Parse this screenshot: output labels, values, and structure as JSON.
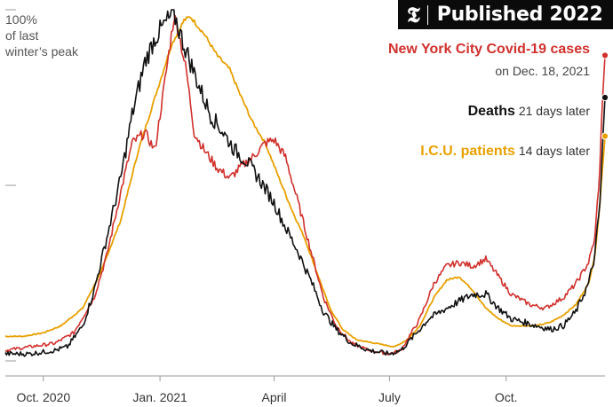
{
  "badge": {
    "logo_glyph": "𝕿",
    "text": "Published 2022"
  },
  "y_axis_label": "100%\nof last\nwinter’s peak",
  "annotations": {
    "cases_title": "New York City Covid-19 cases",
    "cases_date": "on Dec. 18, 2021",
    "deaths_title": "Deaths",
    "deaths_lag": "21 days later",
    "icu_title": "I.C.U. patients",
    "icu_lag": "14 days later"
  },
  "colors": {
    "cases": "#d0312d",
    "deaths": "#111111",
    "icu": "#e8a000",
    "axis": "#999999",
    "text": "#333333"
  },
  "chart_data": {
    "type": "line",
    "x_tick_labels": [
      "Oct. 2020",
      "Jan. 2021",
      "April",
      "July",
      "Oct."
    ],
    "x_tick_dates": [
      "2020-10-01",
      "2021-01-01",
      "2021-04-01",
      "2021-07-01",
      "2021-10-01"
    ],
    "xlim": [
      "2020-09-01",
      "2021-12-18"
    ],
    "ylim": [
      0,
      100
    ],
    "y_ticks": [
      0,
      50,
      100
    ],
    "y_unit": "% of last winter's peak",
    "series": [
      {
        "name": "New York City Covid-19 cases",
        "color": "#d0312d",
        "points": [
          [
            "2020-09-01",
            3
          ],
          [
            "2020-09-20",
            4
          ],
          [
            "2020-10-10",
            5
          ],
          [
            "2020-10-25",
            8
          ],
          [
            "2020-11-10",
            18
          ],
          [
            "2020-11-20",
            30
          ],
          [
            "2020-12-01",
            48
          ],
          [
            "2020-12-10",
            62
          ],
          [
            "2020-12-20",
            65
          ],
          [
            "2020-12-28",
            60
          ],
          [
            "2021-01-05",
            80
          ],
          [
            "2021-01-12",
            98
          ],
          [
            "2021-01-15",
            95
          ],
          [
            "2021-01-22",
            82
          ],
          [
            "2021-01-28",
            65
          ],
          [
            "2021-02-05",
            60
          ],
          [
            "2021-02-15",
            55
          ],
          [
            "2021-02-25",
            52
          ],
          [
            "2021-03-05",
            55
          ],
          [
            "2021-03-15",
            58
          ],
          [
            "2021-03-25",
            62
          ],
          [
            "2021-04-01",
            63
          ],
          [
            "2021-04-10",
            58
          ],
          [
            "2021-04-20",
            45
          ],
          [
            "2021-05-01",
            30
          ],
          [
            "2021-05-10",
            18
          ],
          [
            "2021-05-20",
            10
          ],
          [
            "2021-06-01",
            5
          ],
          [
            "2021-06-15",
            3
          ],
          [
            "2021-07-01",
            2
          ],
          [
            "2021-07-10",
            3
          ],
          [
            "2021-07-25",
            12
          ],
          [
            "2021-08-05",
            22
          ],
          [
            "2021-08-15",
            27
          ],
          [
            "2021-08-25",
            28
          ],
          [
            "2021-09-05",
            27
          ],
          [
            "2021-09-15",
            29
          ],
          [
            "2021-09-25",
            24
          ],
          [
            "2021-10-05",
            19
          ],
          [
            "2021-10-20",
            16
          ],
          [
            "2021-11-01",
            15
          ],
          [
            "2021-11-15",
            18
          ],
          [
            "2021-11-25",
            22
          ],
          [
            "2021-12-05",
            28
          ],
          [
            "2021-12-10",
            35
          ],
          [
            "2021-12-14",
            55
          ],
          [
            "2021-12-16",
            75
          ],
          [
            "2021-12-18",
            87
          ]
        ]
      },
      {
        "name": "Deaths",
        "color": "#111111",
        "points": [
          [
            "2020-09-01",
            2
          ],
          [
            "2020-09-20",
            2
          ],
          [
            "2020-10-10",
            3
          ],
          [
            "2020-10-20",
            4
          ],
          [
            "2020-11-01",
            10
          ],
          [
            "2020-11-10",
            20
          ],
          [
            "2020-11-20",
            35
          ],
          [
            "2020-12-01",
            52
          ],
          [
            "2020-12-10",
            70
          ],
          [
            "2020-12-20",
            85
          ],
          [
            "2020-12-28",
            92
          ],
          [
            "2021-01-05",
            96
          ],
          [
            "2021-01-12",
            99
          ],
          [
            "2021-01-18",
            92
          ],
          [
            "2021-01-25",
            85
          ],
          [
            "2021-02-01",
            78
          ],
          [
            "2021-02-10",
            70
          ],
          [
            "2021-02-20",
            65
          ],
          [
            "2021-03-01",
            60
          ],
          [
            "2021-03-10",
            57
          ],
          [
            "2021-03-20",
            52
          ],
          [
            "2021-04-01",
            45
          ],
          [
            "2021-04-10",
            38
          ],
          [
            "2021-04-20",
            31
          ],
          [
            "2021-05-01",
            22
          ],
          [
            "2021-05-10",
            14
          ],
          [
            "2021-05-20",
            9
          ],
          [
            "2021-06-01",
            5
          ],
          [
            "2021-06-15",
            3
          ],
          [
            "2021-07-01",
            2
          ],
          [
            "2021-07-10",
            3
          ],
          [
            "2021-07-20",
            7
          ],
          [
            "2021-08-01",
            12
          ],
          [
            "2021-08-15",
            15
          ],
          [
            "2021-08-25",
            17
          ],
          [
            "2021-09-05",
            19
          ],
          [
            "2021-09-15",
            19
          ],
          [
            "2021-09-25",
            15
          ],
          [
            "2021-10-05",
            12
          ],
          [
            "2021-10-15",
            11
          ],
          [
            "2021-10-25",
            10
          ],
          [
            "2021-11-05",
            9
          ],
          [
            "2021-11-15",
            10
          ],
          [
            "2021-11-25",
            14
          ],
          [
            "2021-12-05",
            22
          ],
          [
            "2021-12-10",
            30
          ],
          [
            "2021-12-14",
            45
          ],
          [
            "2021-12-16",
            60
          ],
          [
            "2021-12-18",
            75
          ]
        ]
      },
      {
        "name": "I.C.U. patients",
        "color": "#e8a000",
        "points": [
          [
            "2020-09-01",
            7
          ],
          [
            "2020-09-15",
            7
          ],
          [
            "2020-10-01",
            8
          ],
          [
            "2020-10-15",
            10
          ],
          [
            "2020-11-01",
            15
          ],
          [
            "2020-11-15",
            25
          ],
          [
            "2020-12-01",
            40
          ],
          [
            "2020-12-15",
            60
          ],
          [
            "2020-12-28",
            75
          ],
          [
            "2021-01-10",
            90
          ],
          [
            "2021-01-20",
            97
          ],
          [
            "2021-01-25",
            98
          ],
          [
            "2021-02-05",
            93
          ],
          [
            "2021-02-15",
            87
          ],
          [
            "2021-02-25",
            83
          ],
          [
            "2021-03-05",
            76
          ],
          [
            "2021-03-15",
            68
          ],
          [
            "2021-03-25",
            62
          ],
          [
            "2021-04-05",
            52
          ],
          [
            "2021-04-15",
            43
          ],
          [
            "2021-04-25",
            35
          ],
          [
            "2021-05-05",
            25
          ],
          [
            "2021-05-15",
            15
          ],
          [
            "2021-05-25",
            9
          ],
          [
            "2021-06-05",
            6
          ],
          [
            "2021-06-20",
            5
          ],
          [
            "2021-07-05",
            4
          ],
          [
            "2021-07-15",
            6
          ],
          [
            "2021-07-25",
            10
          ],
          [
            "2021-08-05",
            18
          ],
          [
            "2021-08-15",
            23
          ],
          [
            "2021-08-25",
            24
          ],
          [
            "2021-09-05",
            20
          ],
          [
            "2021-09-15",
            15
          ],
          [
            "2021-09-25",
            12
          ],
          [
            "2021-10-05",
            10
          ],
          [
            "2021-10-15",
            10
          ],
          [
            "2021-10-25",
            10
          ],
          [
            "2021-11-05",
            11
          ],
          [
            "2021-11-15",
            13
          ],
          [
            "2021-11-25",
            16
          ],
          [
            "2021-12-05",
            22
          ],
          [
            "2021-12-10",
            30
          ],
          [
            "2021-12-14",
            45
          ],
          [
            "2021-12-16",
            55
          ],
          [
            "2021-12-18",
            64
          ]
        ]
      }
    ]
  }
}
